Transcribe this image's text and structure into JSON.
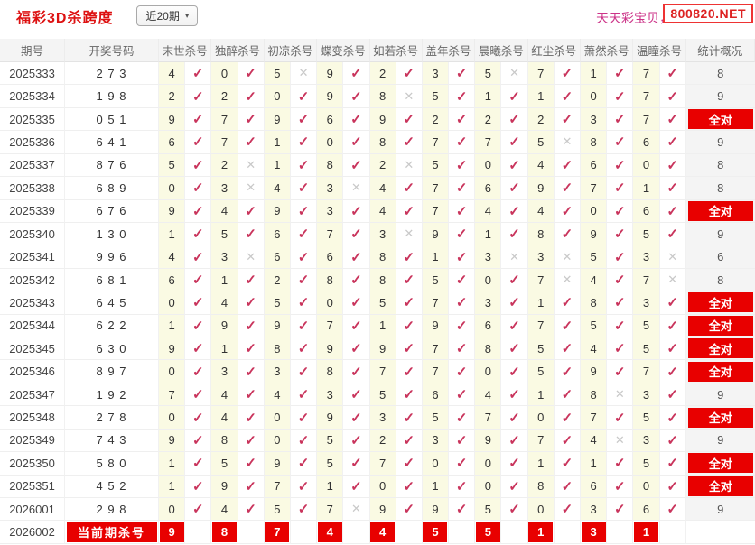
{
  "header": {
    "title": "福彩3D杀跨度",
    "range_select": {
      "value": "近20期"
    },
    "promo_text": "天天彩宝贝，天",
    "watermark": "800820.NET"
  },
  "icons": {
    "check": "✓",
    "cross": "✕",
    "chevron": "▾"
  },
  "colors": {
    "accent_red": "#e80000",
    "title_red": "#dd1111",
    "check_red": "#c9345c",
    "cross_gray": "#c9c9c9",
    "num_cell_yellow": "#fafae3",
    "promo_pink": "#cc3388"
  },
  "table": {
    "all_correct_label": "全对",
    "columns": [
      "期号",
      "开奖号码",
      "末世杀号",
      "独醉杀号",
      "初凉杀号",
      "蝶变杀号",
      "如若杀号",
      "盖年杀号",
      "晨曦杀号",
      "红尘杀号",
      "萧然杀号",
      "温瞳杀号",
      "统计概况"
    ],
    "rows": [
      {
        "period": "2025333",
        "draw": "2 7 3",
        "kills": [
          {
            "v": "4",
            "ok": true
          },
          {
            "v": "0",
            "ok": true
          },
          {
            "v": "5",
            "ok": false
          },
          {
            "v": "9",
            "ok": true
          },
          {
            "v": "2",
            "ok": true
          },
          {
            "v": "3",
            "ok": true
          },
          {
            "v": "5",
            "ok": false
          },
          {
            "v": "7",
            "ok": true
          },
          {
            "v": "1",
            "ok": true
          },
          {
            "v": "7",
            "ok": true
          }
        ],
        "summary": "8"
      },
      {
        "period": "2025334",
        "draw": "1 9 8",
        "kills": [
          {
            "v": "2",
            "ok": true
          },
          {
            "v": "2",
            "ok": true
          },
          {
            "v": "0",
            "ok": true
          },
          {
            "v": "9",
            "ok": true
          },
          {
            "v": "8",
            "ok": false
          },
          {
            "v": "5",
            "ok": true
          },
          {
            "v": "1",
            "ok": true
          },
          {
            "v": "1",
            "ok": true
          },
          {
            "v": "0",
            "ok": true
          },
          {
            "v": "7",
            "ok": true
          }
        ],
        "summary": "9"
      },
      {
        "period": "2025335",
        "draw": "0 5 1",
        "kills": [
          {
            "v": "9",
            "ok": true
          },
          {
            "v": "7",
            "ok": true
          },
          {
            "v": "9",
            "ok": true
          },
          {
            "v": "6",
            "ok": true
          },
          {
            "v": "9",
            "ok": true
          },
          {
            "v": "2",
            "ok": true
          },
          {
            "v": "2",
            "ok": true
          },
          {
            "v": "2",
            "ok": true
          },
          {
            "v": "3",
            "ok": true
          },
          {
            "v": "7",
            "ok": true
          }
        ],
        "summary": "全对"
      },
      {
        "period": "2025336",
        "draw": "6 4 1",
        "kills": [
          {
            "v": "6",
            "ok": true
          },
          {
            "v": "7",
            "ok": true
          },
          {
            "v": "1",
            "ok": true
          },
          {
            "v": "0",
            "ok": true
          },
          {
            "v": "8",
            "ok": true
          },
          {
            "v": "7",
            "ok": true
          },
          {
            "v": "7",
            "ok": true
          },
          {
            "v": "5",
            "ok": false
          },
          {
            "v": "8",
            "ok": true
          },
          {
            "v": "6",
            "ok": true
          }
        ],
        "summary": "9"
      },
      {
        "period": "2025337",
        "draw": "8 7 6",
        "kills": [
          {
            "v": "5",
            "ok": true
          },
          {
            "v": "2",
            "ok": false
          },
          {
            "v": "1",
            "ok": true
          },
          {
            "v": "8",
            "ok": true
          },
          {
            "v": "2",
            "ok": false
          },
          {
            "v": "5",
            "ok": true
          },
          {
            "v": "0",
            "ok": true
          },
          {
            "v": "4",
            "ok": true
          },
          {
            "v": "6",
            "ok": true
          },
          {
            "v": "0",
            "ok": true
          }
        ],
        "summary": "8"
      },
      {
        "period": "2025338",
        "draw": "6 8 9",
        "kills": [
          {
            "v": "0",
            "ok": true
          },
          {
            "v": "3",
            "ok": false
          },
          {
            "v": "4",
            "ok": true
          },
          {
            "v": "3",
            "ok": false
          },
          {
            "v": "4",
            "ok": true
          },
          {
            "v": "7",
            "ok": true
          },
          {
            "v": "6",
            "ok": true
          },
          {
            "v": "9",
            "ok": true
          },
          {
            "v": "7",
            "ok": true
          },
          {
            "v": "1",
            "ok": true
          }
        ],
        "summary": "8"
      },
      {
        "period": "2025339",
        "draw": "6 7 6",
        "kills": [
          {
            "v": "9",
            "ok": true
          },
          {
            "v": "4",
            "ok": true
          },
          {
            "v": "9",
            "ok": true
          },
          {
            "v": "3",
            "ok": true
          },
          {
            "v": "4",
            "ok": true
          },
          {
            "v": "7",
            "ok": true
          },
          {
            "v": "4",
            "ok": true
          },
          {
            "v": "4",
            "ok": true
          },
          {
            "v": "0",
            "ok": true
          },
          {
            "v": "6",
            "ok": true
          }
        ],
        "summary": "全对"
      },
      {
        "period": "2025340",
        "draw": "1 3 0",
        "kills": [
          {
            "v": "1",
            "ok": true
          },
          {
            "v": "5",
            "ok": true
          },
          {
            "v": "6",
            "ok": true
          },
          {
            "v": "7",
            "ok": true
          },
          {
            "v": "3",
            "ok": false
          },
          {
            "v": "9",
            "ok": true
          },
          {
            "v": "1",
            "ok": true
          },
          {
            "v": "8",
            "ok": true
          },
          {
            "v": "9",
            "ok": true
          },
          {
            "v": "5",
            "ok": true
          }
        ],
        "summary": "9"
      },
      {
        "period": "2025341",
        "draw": "9 9 6",
        "kills": [
          {
            "v": "4",
            "ok": true
          },
          {
            "v": "3",
            "ok": false
          },
          {
            "v": "6",
            "ok": true
          },
          {
            "v": "6",
            "ok": true
          },
          {
            "v": "8",
            "ok": true
          },
          {
            "v": "1",
            "ok": true
          },
          {
            "v": "3",
            "ok": false
          },
          {
            "v": "3",
            "ok": false
          },
          {
            "v": "5",
            "ok": true
          },
          {
            "v": "3",
            "ok": false
          }
        ],
        "summary": "6"
      },
      {
        "period": "2025342",
        "draw": "6 8 1",
        "kills": [
          {
            "v": "6",
            "ok": true
          },
          {
            "v": "1",
            "ok": true
          },
          {
            "v": "2",
            "ok": true
          },
          {
            "v": "8",
            "ok": true
          },
          {
            "v": "8",
            "ok": true
          },
          {
            "v": "5",
            "ok": true
          },
          {
            "v": "0",
            "ok": true
          },
          {
            "v": "7",
            "ok": false
          },
          {
            "v": "4",
            "ok": true
          },
          {
            "v": "7",
            "ok": false
          }
        ],
        "summary": "8"
      },
      {
        "period": "2025343",
        "draw": "6 4 5",
        "kills": [
          {
            "v": "0",
            "ok": true
          },
          {
            "v": "4",
            "ok": true
          },
          {
            "v": "5",
            "ok": true
          },
          {
            "v": "0",
            "ok": true
          },
          {
            "v": "5",
            "ok": true
          },
          {
            "v": "7",
            "ok": true
          },
          {
            "v": "3",
            "ok": true
          },
          {
            "v": "1",
            "ok": true
          },
          {
            "v": "8",
            "ok": true
          },
          {
            "v": "3",
            "ok": true
          }
        ],
        "summary": "全对"
      },
      {
        "period": "2025344",
        "draw": "6 2 2",
        "kills": [
          {
            "v": "1",
            "ok": true
          },
          {
            "v": "9",
            "ok": true
          },
          {
            "v": "9",
            "ok": true
          },
          {
            "v": "7",
            "ok": true
          },
          {
            "v": "1",
            "ok": true
          },
          {
            "v": "9",
            "ok": true
          },
          {
            "v": "6",
            "ok": true
          },
          {
            "v": "7",
            "ok": true
          },
          {
            "v": "5",
            "ok": true
          },
          {
            "v": "5",
            "ok": true
          }
        ],
        "summary": "全对"
      },
      {
        "period": "2025345",
        "draw": "6 3 0",
        "kills": [
          {
            "v": "9",
            "ok": true
          },
          {
            "v": "1",
            "ok": true
          },
          {
            "v": "8",
            "ok": true
          },
          {
            "v": "9",
            "ok": true
          },
          {
            "v": "9",
            "ok": true
          },
          {
            "v": "7",
            "ok": true
          },
          {
            "v": "8",
            "ok": true
          },
          {
            "v": "5",
            "ok": true
          },
          {
            "v": "4",
            "ok": true
          },
          {
            "v": "5",
            "ok": true
          }
        ],
        "summary": "全对"
      },
      {
        "period": "2025346",
        "draw": "8 9 7",
        "kills": [
          {
            "v": "0",
            "ok": true
          },
          {
            "v": "3",
            "ok": true
          },
          {
            "v": "3",
            "ok": true
          },
          {
            "v": "8",
            "ok": true
          },
          {
            "v": "7",
            "ok": true
          },
          {
            "v": "7",
            "ok": true
          },
          {
            "v": "0",
            "ok": true
          },
          {
            "v": "5",
            "ok": true
          },
          {
            "v": "9",
            "ok": true
          },
          {
            "v": "7",
            "ok": true
          }
        ],
        "summary": "全对"
      },
      {
        "period": "2025347",
        "draw": "1 9 2",
        "kills": [
          {
            "v": "7",
            "ok": true
          },
          {
            "v": "4",
            "ok": true
          },
          {
            "v": "4",
            "ok": true
          },
          {
            "v": "3",
            "ok": true
          },
          {
            "v": "5",
            "ok": true
          },
          {
            "v": "6",
            "ok": true
          },
          {
            "v": "4",
            "ok": true
          },
          {
            "v": "1",
            "ok": true
          },
          {
            "v": "8",
            "ok": false
          },
          {
            "v": "3",
            "ok": true
          }
        ],
        "summary": "9"
      },
      {
        "period": "2025348",
        "draw": "2 7 8",
        "kills": [
          {
            "v": "0",
            "ok": true
          },
          {
            "v": "4",
            "ok": true
          },
          {
            "v": "0",
            "ok": true
          },
          {
            "v": "9",
            "ok": true
          },
          {
            "v": "3",
            "ok": true
          },
          {
            "v": "5",
            "ok": true
          },
          {
            "v": "7",
            "ok": true
          },
          {
            "v": "0",
            "ok": true
          },
          {
            "v": "7",
            "ok": true
          },
          {
            "v": "5",
            "ok": true
          }
        ],
        "summary": "全对"
      },
      {
        "period": "2025349",
        "draw": "7 4 3",
        "kills": [
          {
            "v": "9",
            "ok": true
          },
          {
            "v": "8",
            "ok": true
          },
          {
            "v": "0",
            "ok": true
          },
          {
            "v": "5",
            "ok": true
          },
          {
            "v": "2",
            "ok": true
          },
          {
            "v": "3",
            "ok": true
          },
          {
            "v": "9",
            "ok": true
          },
          {
            "v": "7",
            "ok": true
          },
          {
            "v": "4",
            "ok": false
          },
          {
            "v": "3",
            "ok": true
          }
        ],
        "summary": "9"
      },
      {
        "period": "2025350",
        "draw": "5 8 0",
        "kills": [
          {
            "v": "1",
            "ok": true
          },
          {
            "v": "5",
            "ok": true
          },
          {
            "v": "9",
            "ok": true
          },
          {
            "v": "5",
            "ok": true
          },
          {
            "v": "7",
            "ok": true
          },
          {
            "v": "0",
            "ok": true
          },
          {
            "v": "0",
            "ok": true
          },
          {
            "v": "1",
            "ok": true
          },
          {
            "v": "1",
            "ok": true
          },
          {
            "v": "5",
            "ok": true
          }
        ],
        "summary": "全对"
      },
      {
        "period": "2025351",
        "draw": "4 5 2",
        "kills": [
          {
            "v": "1",
            "ok": true
          },
          {
            "v": "9",
            "ok": true
          },
          {
            "v": "7",
            "ok": true
          },
          {
            "v": "1",
            "ok": true
          },
          {
            "v": "0",
            "ok": true
          },
          {
            "v": "1",
            "ok": true
          },
          {
            "v": "0",
            "ok": true
          },
          {
            "v": "8",
            "ok": true
          },
          {
            "v": "6",
            "ok": true
          },
          {
            "v": "0",
            "ok": true
          }
        ],
        "summary": "全对"
      },
      {
        "period": "2026001",
        "draw": "2 9 8",
        "kills": [
          {
            "v": "0",
            "ok": true
          },
          {
            "v": "4",
            "ok": true
          },
          {
            "v": "5",
            "ok": true
          },
          {
            "v": "7",
            "ok": false
          },
          {
            "v": "9",
            "ok": true
          },
          {
            "v": "9",
            "ok": true
          },
          {
            "v": "5",
            "ok": true
          },
          {
            "v": "0",
            "ok": true
          },
          {
            "v": "3",
            "ok": true
          },
          {
            "v": "6",
            "ok": true
          }
        ],
        "summary": "9"
      },
      {
        "period": "2026002",
        "is_current": true,
        "label": "当前期杀号",
        "kills": [
          {
            "v": "9"
          },
          {
            "v": "8"
          },
          {
            "v": "7"
          },
          {
            "v": "4"
          },
          {
            "v": "4"
          },
          {
            "v": "5"
          },
          {
            "v": "5"
          },
          {
            "v": "1"
          },
          {
            "v": "3"
          },
          {
            "v": "1"
          }
        ],
        "summary": ""
      }
    ]
  }
}
